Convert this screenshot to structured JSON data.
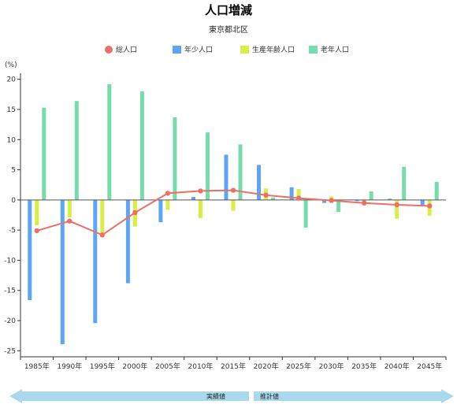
{
  "title": "人口増減",
  "subtitle": "東京都北区",
  "y_unit_label": "(%)",
  "colors": {
    "total": "#ec7063",
    "youth": "#5ca6f5",
    "working": "#d9ef43",
    "elderly": "#77dcab",
    "axis": "#333333",
    "arrow": "#a9d9ef"
  },
  "legend": [
    {
      "label": "総人口",
      "shape": "dot",
      "color": "#ec7063"
    },
    {
      "label": "年少人口",
      "shape": "box",
      "color": "#5ca6f5"
    },
    {
      "label": "生産年齢人口",
      "shape": "box",
      "color": "#d9ef43"
    },
    {
      "label": "老年人口",
      "shape": "box",
      "color": "#77dcab"
    }
  ],
  "timeline": {
    "actual_label": "実績値",
    "projection_label": "推計値"
  },
  "chart_data": {
    "type": "bar",
    "title": "人口増減",
    "subtitle": "東京都北区",
    "ylabel": "(%)",
    "ylim": [
      -26,
      21
    ],
    "yticks": [
      -25,
      -20,
      -15,
      -10,
      -5,
      0,
      5,
      10,
      15,
      20
    ],
    "grid": false,
    "legend_position": "top",
    "categories": [
      "1985年",
      "1990年",
      "1995年",
      "2000年",
      "2005年",
      "2010年",
      "2015年",
      "2020年",
      "2025年",
      "2030年",
      "2035年",
      "2040年",
      "2045年"
    ],
    "series": [
      {
        "name": "年少人口",
        "type": "bar",
        "values": [
          -16.6,
          -23.9,
          -20.4,
          -13.8,
          -3.7,
          0.5,
          7.5,
          5.8,
          2.1,
          -0.5,
          -0.2,
          0.2,
          -0.9
        ]
      },
      {
        "name": "生産年齢人口",
        "type": "bar",
        "values": [
          -4.2,
          -2.9,
          -6.0,
          -4.4,
          -1.6,
          -3.0,
          -1.8,
          1.9,
          1.8,
          0.6,
          -0.9,
          -3.1,
          -2.6
        ]
      },
      {
        "name": "老年人口",
        "type": "bar",
        "values": [
          15.3,
          16.4,
          19.2,
          18.0,
          13.7,
          11.2,
          9.2,
          0.4,
          -4.6,
          -2.0,
          1.4,
          5.5,
          3.0
        ]
      },
      {
        "name": "総人口",
        "type": "line",
        "values": [
          -5.1,
          -3.5,
          -5.8,
          -2.1,
          1.1,
          1.5,
          1.6,
          0.8,
          0.3,
          -0.1,
          -0.5,
          -0.8,
          -1.0
        ]
      }
    ]
  }
}
